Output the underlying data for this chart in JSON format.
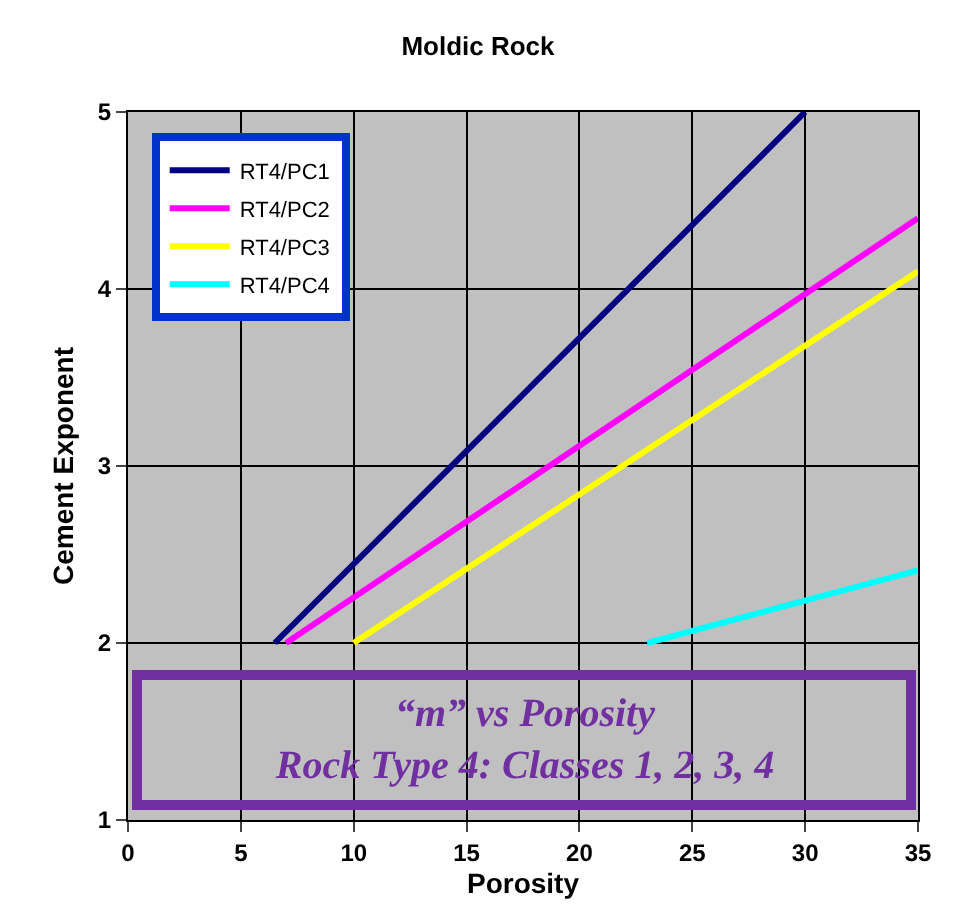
{
  "chart_data": {
    "type": "line",
    "title": "Moldic Rock",
    "xlabel": "Porosity",
    "ylabel": "Cement Exponent",
    "xlim": [
      0,
      35
    ],
    "xticks": [
      0,
      5,
      10,
      15,
      20,
      25,
      30,
      35
    ],
    "ylim": [
      1,
      5
    ],
    "yticks": [
      1,
      2,
      3,
      4,
      5
    ],
    "grid": true,
    "legend": "top left",
    "marker": "none",
    "line_style": "solid",
    "series": [
      {
        "name": "RT4/PC1",
        "color": "#000080",
        "x": [
          6.5,
          30
        ],
        "values": [
          2.0,
          5.0
        ]
      },
      {
        "name": "RT4/PC2",
        "color": "#ff00ff",
        "x": [
          7,
          35
        ],
        "values": [
          2.0,
          4.4
        ]
      },
      {
        "name": "RT4/PC3",
        "color": "#ffff00",
        "x": [
          10,
          35
        ],
        "values": [
          2.0,
          4.1
        ]
      },
      {
        "name": "RT4/PC4",
        "color": "#00ffff",
        "x": [
          23,
          35
        ],
        "values": [
          2.0,
          2.41
        ]
      }
    ],
    "annotations": [
      "“m” vs Porosity\nRock Type 4: Classes 1, 2, 3, 4"
    ]
  }
}
